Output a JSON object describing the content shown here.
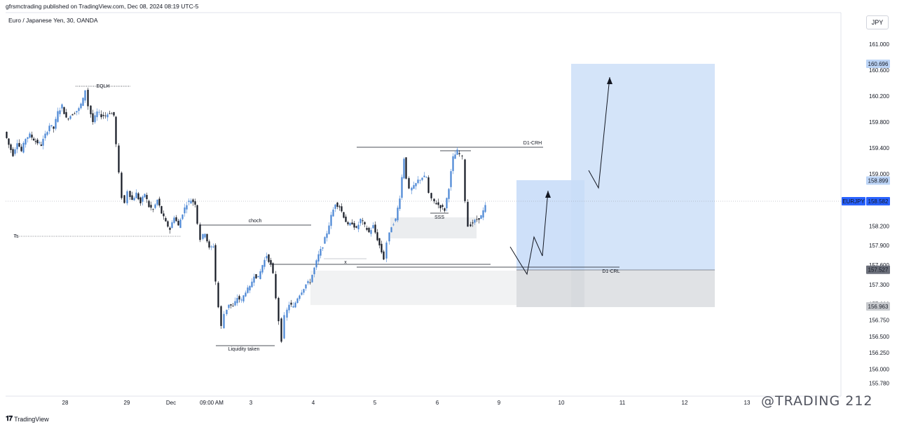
{
  "header": {
    "published_line": "gfrsmctrading published on TradingView.com, Dec 08, 2024 08:19 UTC-5",
    "symbol_line": "Euro / Japanese Yen, 30, OANDA",
    "currency_button": "JPY"
  },
  "footer": {
    "logo_text": "TradingView",
    "watermark": "@TRADING 212"
  },
  "colors": {
    "up": "#4a86d4",
    "down": "#131722",
    "target_zone": "#c9ddf8",
    "stop_zone": "#e3e5e8",
    "price_label": "#2962ff",
    "line": "#131722"
  },
  "chart_data": {
    "type": "candlestick",
    "ylim": [
      155.65,
      161.3
    ],
    "y_ticks": [
      "161.000",
      "160.600",
      "160.200",
      "159.800",
      "159.400",
      "159.000",
      "158.200",
      "157.900",
      "157.600",
      "157.300",
      "157.000",
      "156.750",
      "156.500",
      "156.250",
      "156.000",
      "155.780"
    ],
    "x_ticks": [
      "28",
      "29",
      "Dec",
      "09:00 AM",
      "3",
      "4",
      "5",
      "6",
      "9",
      "10",
      "11",
      "12",
      "13"
    ],
    "price_labels": [
      {
        "text": "160.696",
        "value": 160.696,
        "highlight": true
      },
      {
        "text": "158.899",
        "value": 158.899,
        "highlight": true
      },
      {
        "text": "EURJPY",
        "value": 158.582,
        "highlight": true,
        "is_symbol": true
      },
      {
        "text": "158.582",
        "value": 158.582,
        "highlight": true
      },
      {
        "text": "157.527",
        "value": 157.527,
        "highlight": false
      },
      {
        "text": "156.963",
        "value": 156.963,
        "highlight": false
      }
    ],
    "annotations": [
      {
        "text": "EQLH"
      },
      {
        "text": "D1-CRH"
      },
      {
        "text": "choch"
      },
      {
        "text": "SSS"
      },
      {
        "text": "x"
      },
      {
        "text": "D1-CRL"
      },
      {
        "text": "Liquidity taken"
      },
      {
        "text": "Ts"
      }
    ],
    "candles_path": [
      [
        0,
        159.65
      ],
      [
        6,
        159.45
      ],
      [
        12,
        159.3
      ],
      [
        18,
        159.5
      ],
      [
        24,
        159.35
      ],
      [
        30,
        159.55
      ],
      [
        36,
        159.6
      ],
      [
        44,
        159.5
      ],
      [
        52,
        159.45
      ],
      [
        58,
        159.6
      ],
      [
        64,
        159.75
      ],
      [
        70,
        159.7
      ],
      [
        76,
        159.95
      ],
      [
        82,
        160.05
      ],
      [
        88,
        159.85
      ],
      [
        94,
        159.9
      ],
      [
        100,
        159.95
      ],
      [
        106,
        160.0
      ],
      [
        112,
        160.15
      ],
      [
        116,
        160.3
      ],
      [
        120,
        160.05
      ],
      [
        126,
        159.8
      ],
      [
        132,
        159.95
      ],
      [
        138,
        159.9
      ],
      [
        144,
        159.9
      ],
      [
        150,
        159.95
      ],
      [
        156,
        159.9
      ],
      [
        160,
        159.45
      ],
      [
        164,
        159.0
      ],
      [
        168,
        158.65
      ],
      [
        172,
        158.55
      ],
      [
        176,
        158.75
      ],
      [
        182,
        158.6
      ],
      [
        188,
        158.7
      ],
      [
        194,
        158.55
      ],
      [
        200,
        158.7
      ],
      [
        206,
        158.5
      ],
      [
        212,
        158.45
      ],
      [
        218,
        158.6
      ],
      [
        224,
        158.4
      ],
      [
        230,
        158.25
      ],
      [
        236,
        158.15
      ],
      [
        242,
        158.35
      ],
      [
        248,
        158.2
      ],
      [
        254,
        158.4
      ],
      [
        260,
        158.55
      ],
      [
        266,
        158.6
      ],
      [
        272,
        158.55
      ],
      [
        276,
        158.25
      ],
      [
        280,
        158.0
      ],
      [
        286,
        158.1
      ],
      [
        292,
        157.85
      ],
      [
        298,
        157.9
      ],
      [
        302,
        157.35
      ],
      [
        306,
        156.95
      ],
      [
        310,
        156.65
      ],
      [
        314,
        156.85
      ],
      [
        320,
        157.0
      ],
      [
        326,
        156.95
      ],
      [
        332,
        157.1
      ],
      [
        338,
        157.05
      ],
      [
        344,
        157.2
      ],
      [
        350,
        157.25
      ],
      [
        356,
        157.45
      ],
      [
        362,
        157.4
      ],
      [
        368,
        157.6
      ],
      [
        374,
        157.75
      ],
      [
        380,
        157.6
      ],
      [
        384,
        157.45
      ],
      [
        388,
        157.1
      ],
      [
        392,
        156.75
      ],
      [
        396,
        156.45
      ],
      [
        400,
        156.8
      ],
      [
        406,
        157.0
      ],
      [
        412,
        156.95
      ],
      [
        418,
        157.1
      ],
      [
        424,
        157.2
      ],
      [
        430,
        157.3
      ],
      [
        436,
        157.35
      ],
      [
        442,
        157.55
      ],
      [
        448,
        157.75
      ],
      [
        454,
        157.9
      ],
      [
        460,
        158.1
      ],
      [
        466,
        158.35
      ],
      [
        472,
        158.55
      ],
      [
        478,
        158.5
      ],
      [
        484,
        158.35
      ],
      [
        490,
        158.2
      ],
      [
        496,
        158.25
      ],
      [
        502,
        158.15
      ],
      [
        508,
        158.3
      ],
      [
        514,
        158.2
      ],
      [
        520,
        158.1
      ],
      [
        526,
        158.2
      ],
      [
        532,
        158.0
      ],
      [
        538,
        157.8
      ],
      [
        542,
        157.7
      ],
      [
        546,
        157.95
      ],
      [
        552,
        158.2
      ],
      [
        558,
        158.3
      ],
      [
        564,
        158.65
      ],
      [
        570,
        159.25
      ],
      [
        574,
        158.95
      ],
      [
        578,
        158.75
      ],
      [
        584,
        158.8
      ],
      [
        590,
        158.9
      ],
      [
        596,
        158.95
      ],
      [
        602,
        158.95
      ],
      [
        606,
        158.7
      ],
      [
        610,
        158.6
      ],
      [
        616,
        158.55
      ],
      [
        622,
        158.5
      ],
      [
        628,
        158.45
      ],
      [
        634,
        158.8
      ],
      [
        640,
        159.25
      ],
      [
        646,
        159.35
      ],
      [
        650,
        159.3
      ],
      [
        654,
        159.25
      ],
      [
        658,
        158.6
      ],
      [
        662,
        158.2
      ],
      [
        668,
        158.25
      ],
      [
        674,
        158.3
      ],
      [
        680,
        158.35
      ],
      [
        686,
        158.5
      ]
    ]
  }
}
